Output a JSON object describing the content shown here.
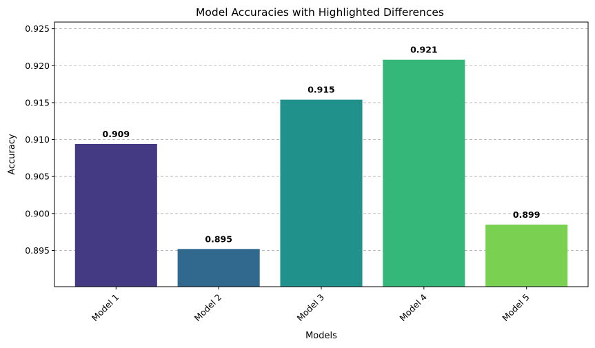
{
  "chart_data": {
    "type": "bar",
    "title": "Model Accuracies with Highlighted Differences",
    "xlabel": "Models",
    "ylabel": "Accuracy",
    "categories": [
      "Model 1",
      "Model 2",
      "Model 3",
      "Model 4",
      "Model 5"
    ],
    "values": [
      0.9094,
      0.8952,
      0.9154,
      0.9208,
      0.8985
    ],
    "value_labels": [
      "0.909",
      "0.895",
      "0.915",
      "0.921",
      "0.899"
    ],
    "colors": [
      "#443983",
      "#31688e",
      "#21918c",
      "#35b779",
      "#7ad151"
    ],
    "ylim": [
      0.8901,
      0.9259
    ],
    "yticks": [
      0.895,
      0.9,
      0.905,
      0.91,
      0.915,
      0.92,
      0.925
    ],
    "ytick_labels": [
      "0.895",
      "0.900",
      "0.905",
      "0.910",
      "0.915",
      "0.920",
      "0.925"
    ],
    "grid": "y-dashed",
    "xtick_rotation": 45
  }
}
